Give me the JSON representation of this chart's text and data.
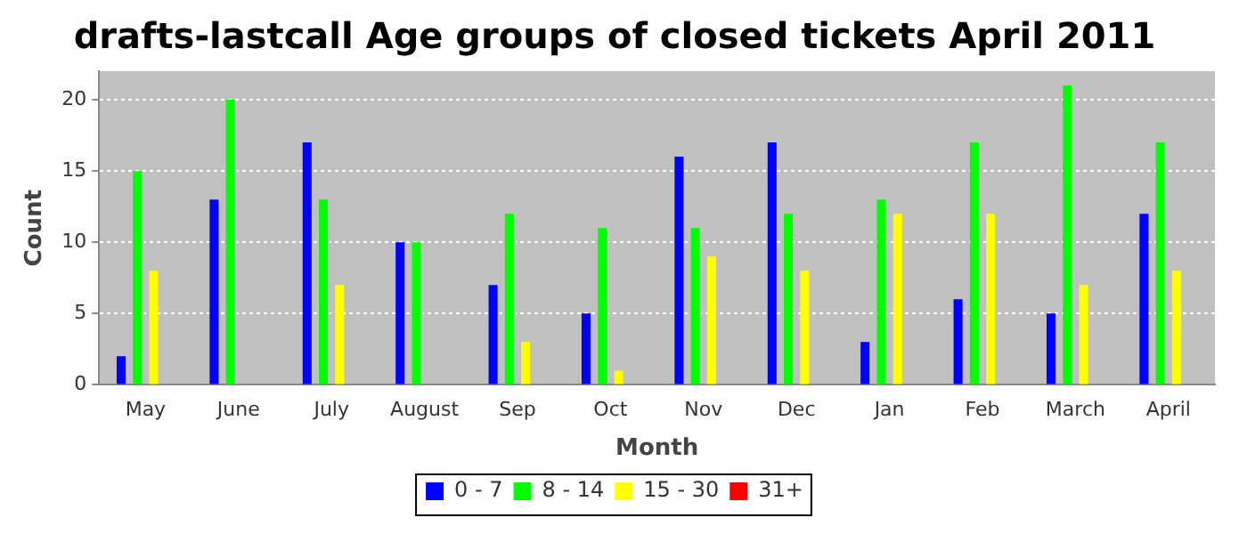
{
  "chart_data": {
    "type": "bar",
    "title": "drafts-lastcall Age groups of closed tickets April 2011",
    "xlabel": "Month",
    "ylabel": "Count",
    "categories": [
      "May",
      "June",
      "July",
      "August",
      "Sep",
      "Oct",
      "Nov",
      "Dec",
      "Jan",
      "Feb",
      "March",
      "April"
    ],
    "series": [
      {
        "name": "0 - 7",
        "color": "#0000ff",
        "values": [
          2,
          13,
          17,
          10,
          7,
          5,
          16,
          17,
          3,
          6,
          5,
          12
        ]
      },
      {
        "name": "8 - 14",
        "color": "#00ff00",
        "values": [
          15,
          20,
          13,
          10,
          12,
          11,
          11,
          12,
          13,
          17,
          21,
          17
        ]
      },
      {
        "name": "15 - 30",
        "color": "#ffff00",
        "values": [
          8,
          0,
          7,
          0,
          3,
          1,
          9,
          8,
          12,
          12,
          7,
          8
        ]
      },
      {
        "name": "31+",
        "color": "#ff0000",
        "values": [
          0,
          0,
          0,
          0,
          0,
          0,
          0,
          0,
          0,
          0,
          0,
          0
        ]
      }
    ],
    "ylim": [
      0,
      22
    ],
    "yticks": [
      0,
      5,
      10,
      15,
      20
    ],
    "grid": "y",
    "legend": "bottom"
  }
}
